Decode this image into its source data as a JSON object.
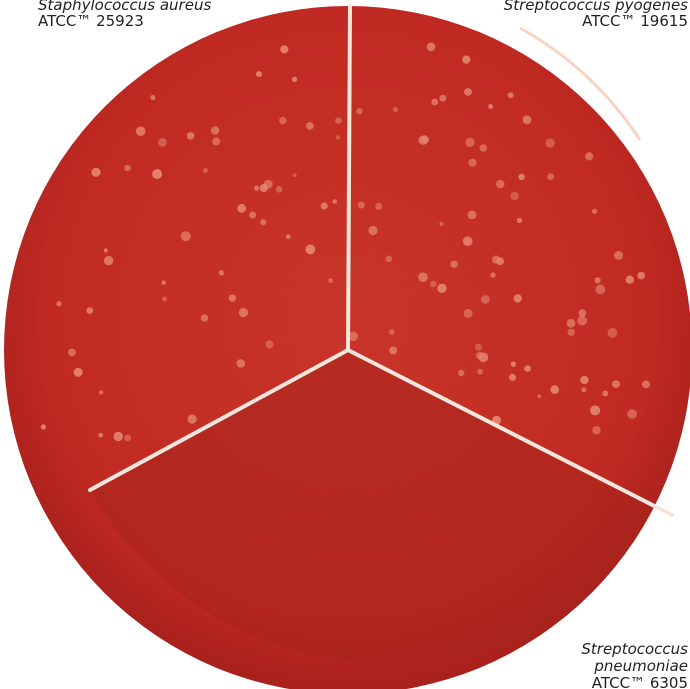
{
  "labels": [
    {
      "species": "Staphylococcus aureus",
      "strain": "ATCC™ 25923"
    },
    {
      "species": "Streptococcus pyogenes",
      "strain": "ATCC™ 19615"
    },
    {
      "species_lines": [
        "Streptococcus",
        "pneumoniae"
      ],
      "strain": "ATCC™ 6305"
    }
  ]
}
